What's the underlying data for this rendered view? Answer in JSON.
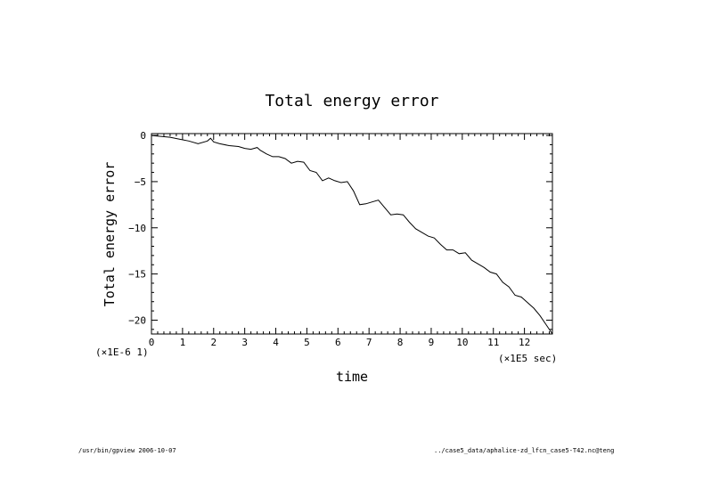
{
  "chart_data": {
    "type": "line",
    "title": "Total energy error",
    "xlabel": "time",
    "ylabel": "Total energy error",
    "x_scale_note": "(×1E5 sec)",
    "y_scale_note": "(×1E-6 1)",
    "xlim": [
      0,
      12.9
    ],
    "ylim": [
      -21.5,
      0.2
    ],
    "xticks": [
      "0",
      "1",
      "2",
      "3",
      "4",
      "5",
      "6",
      "7",
      "8",
      "9",
      "10",
      "11",
      "12"
    ],
    "yticks": [
      "0",
      "−5",
      "−10",
      "−15",
      "−20"
    ],
    "grid": false,
    "series": [
      {
        "x": [
          0,
          0.3,
          0.6,
          0.9,
          1.2,
          1.5,
          1.8,
          1.9,
          2.0,
          2.2,
          2.5,
          2.8,
          3.0,
          3.2,
          3.4,
          3.5,
          3.7,
          3.9,
          4.1,
          4.3,
          4.5,
          4.7,
          4.9,
          5.1,
          5.3,
          5.5,
          5.7,
          5.9,
          6.1,
          6.3,
          6.5,
          6.7,
          6.9,
          7.1,
          7.3,
          7.5,
          7.7,
          7.9,
          8.1,
          8.3,
          8.5,
          8.7,
          8.9,
          9.1,
          9.3,
          9.5,
          9.7,
          9.9,
          10.1,
          10.3,
          10.5,
          10.7,
          10.9,
          11.1,
          11.3,
          11.5,
          11.7,
          11.9,
          12.1,
          12.3,
          12.5,
          12.7,
          12.9
        ],
        "values": [
          0,
          -0.1,
          -0.2,
          -0.4,
          -0.6,
          -0.9,
          -0.6,
          -0.3,
          -0.7,
          -0.9,
          -1.1,
          -1.2,
          -1.4,
          -1.5,
          -1.3,
          -1.6,
          -2.0,
          -2.3,
          -2.3,
          -2.5,
          -3.0,
          -2.8,
          -2.9,
          -3.8,
          -4.0,
          -4.9,
          -4.6,
          -4.9,
          -5.1,
          -5.0,
          -6.0,
          -7.5,
          -7.4,
          -7.2,
          -7.0,
          -7.8,
          -8.6,
          -8.5,
          -8.6,
          -9.4,
          -10.1,
          -10.5,
          -10.9,
          -11.1,
          -11.8,
          -12.4,
          -12.4,
          -12.8,
          -12.7,
          -13.5,
          -13.9,
          -14.3,
          -14.8,
          -15.0,
          -15.9,
          -16.4,
          -17.3,
          -17.5,
          -18.1,
          -18.7,
          -19.5,
          -20.5,
          -21.5
        ]
      }
    ]
  },
  "footer": {
    "left": "/usr/bin/gpview  2006-10-07",
    "right": "../case5_data/aphalice-zd_lfcn_case5-T42.nc@teng"
  }
}
